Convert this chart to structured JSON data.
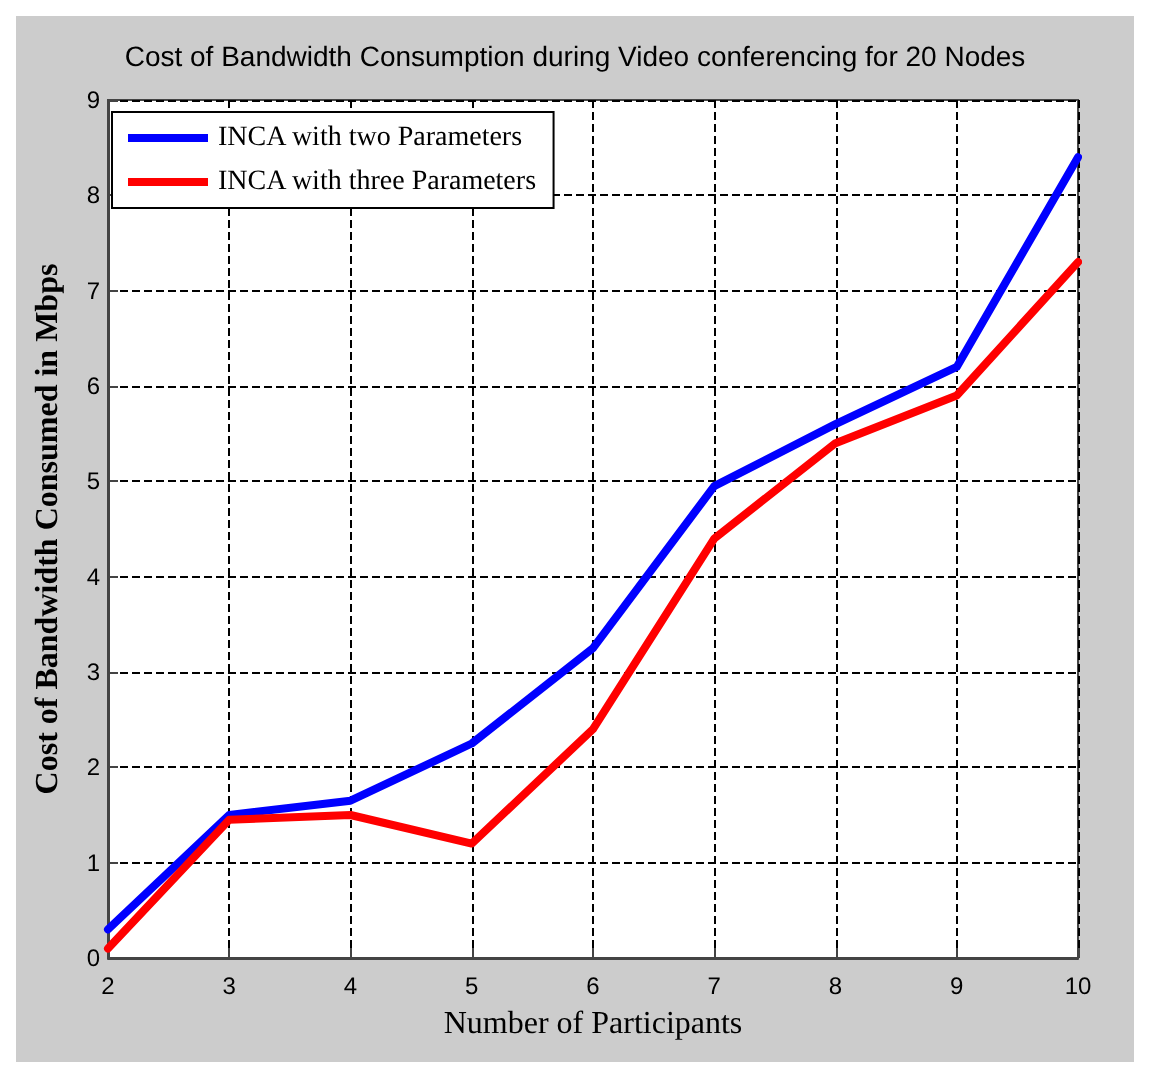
{
  "chart_data": {
    "type": "line",
    "title": "Cost of Bandwidth Consumption during Video conferencing for 20 Nodes",
    "xlabel": "Number of Participants",
    "ylabel": "Cost of Bandwidth Consumed in Mbps",
    "x": [
      2,
      3,
      4,
      5,
      6,
      7,
      8,
      9,
      10
    ],
    "series": [
      {
        "name": "INCA with two Parameters",
        "color": "#0000ff",
        "values": [
          0.3,
          1.5,
          1.65,
          2.25,
          3.25,
          4.95,
          5.6,
          6.2,
          8.4
        ]
      },
      {
        "name": "INCA with three Parameters",
        "color": "#ff0000",
        "values": [
          0.1,
          1.45,
          1.5,
          1.2,
          2.4,
          4.4,
          5.4,
          5.9,
          7.3
        ]
      }
    ],
    "xlim": [
      2,
      10
    ],
    "xticks": [
      2,
      3,
      4,
      5,
      6,
      7,
      8,
      9,
      10
    ],
    "ylim": [
      0,
      9
    ],
    "yticks": [
      0,
      1,
      2,
      3,
      4,
      5,
      6,
      7,
      8,
      9
    ],
    "grid": true,
    "legend": "top left",
    "marker": "none",
    "line_style": "solid"
  }
}
